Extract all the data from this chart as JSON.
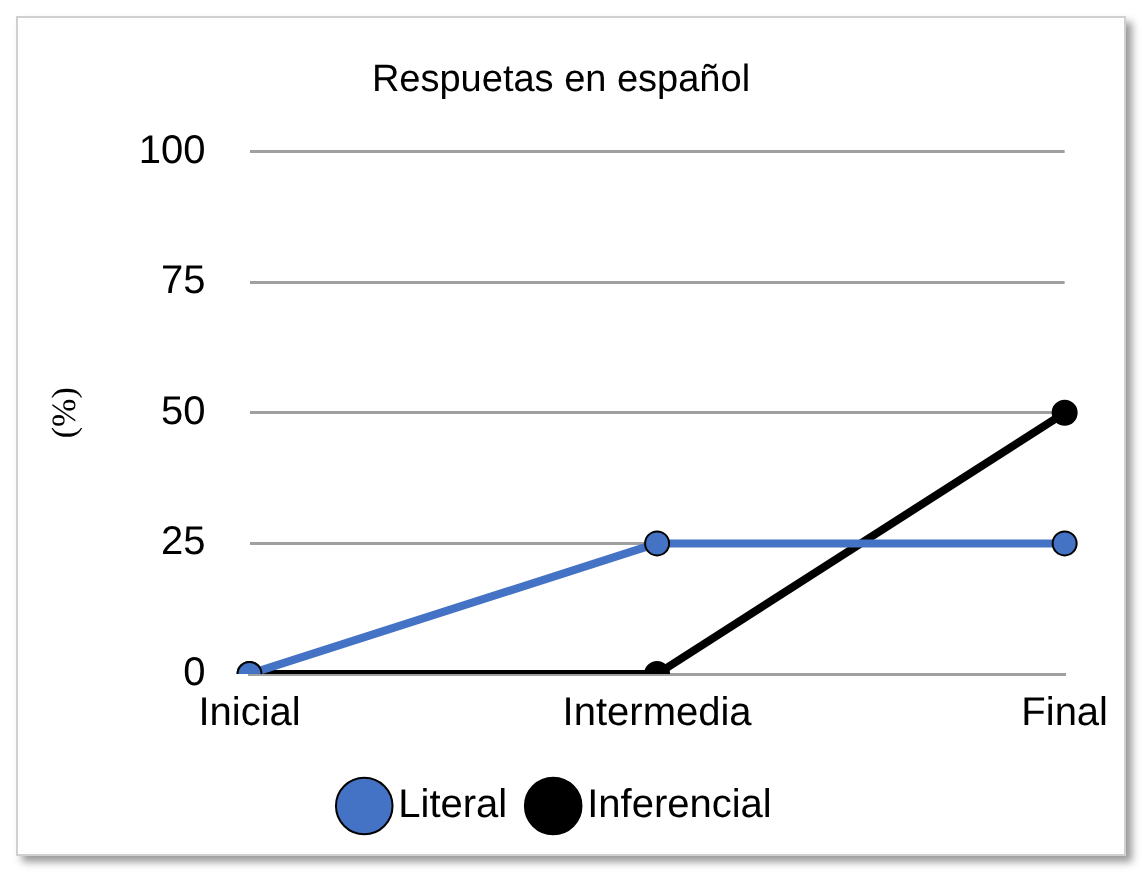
{
  "chart_data": {
    "type": "line",
    "title": "Respuetas en español",
    "ylabel": "(%)",
    "categories": [
      "Inicial",
      "Intermedia",
      "Final"
    ],
    "series": [
      {
        "name": "Literal",
        "color": "#4472c4",
        "values": [
          0,
          25,
          25
        ]
      },
      {
        "name": "Inferencial",
        "color": "#000000",
        "values": [
          0,
          0,
          50
        ]
      }
    ],
    "ylim": [
      0,
      100
    ],
    "yticks": [
      0,
      25,
      50,
      75,
      100
    ],
    "grid": "y",
    "legend": "bottom",
    "marker": "circle",
    "line_style": "solid"
  }
}
